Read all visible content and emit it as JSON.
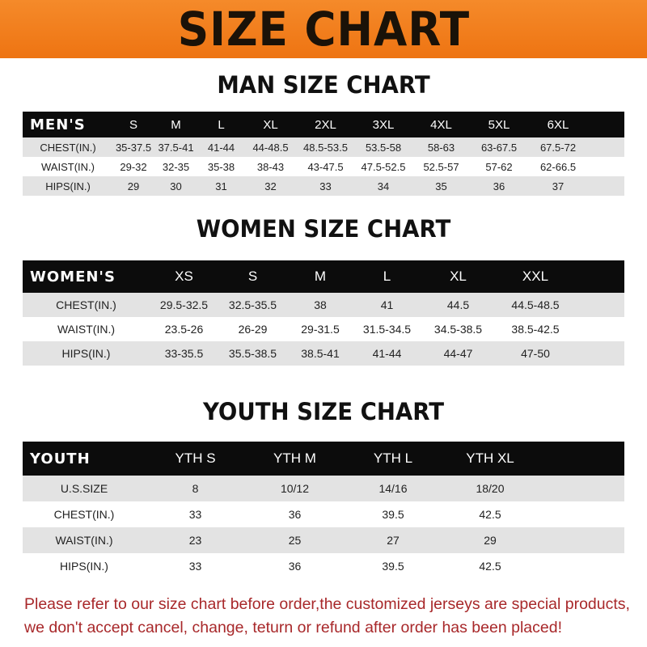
{
  "title": "SIZE CHART",
  "men": {
    "title": "MAN SIZE CHART",
    "header": [
      "MEN'S",
      "S",
      "M",
      "L",
      "XL",
      "2XL",
      "3XL",
      "4XL",
      "5XL",
      "6XL"
    ],
    "rows": [
      [
        "CHEST(IN.)",
        "35-37.5",
        "37.5-41",
        "41-44",
        "44-48.5",
        "48.5-53.5",
        "53.5-58",
        "58-63",
        "63-67.5",
        "67.5-72"
      ],
      [
        "WAIST(IN.)",
        "29-32",
        "32-35",
        "35-38",
        "38-43",
        "43-47.5",
        "47.5-52.5",
        "52.5-57",
        "57-62",
        "62-66.5"
      ],
      [
        "HIPS(IN.)",
        "29",
        "30",
        "31",
        "32",
        "33",
        "34",
        "35",
        "36",
        "37"
      ]
    ]
  },
  "women": {
    "title": "WOMEN SIZE CHART",
    "header": [
      "WOMEN'S",
      "XS",
      "S",
      "M",
      "L",
      "XL",
      "XXL"
    ],
    "rows": [
      [
        "CHEST(IN.)",
        "29.5-32.5",
        "32.5-35.5",
        "38",
        "41",
        "44.5",
        "44.5-48.5"
      ],
      [
        "WAIST(IN.)",
        "23.5-26",
        "26-29",
        "29-31.5",
        "31.5-34.5",
        "34.5-38.5",
        "38.5-42.5"
      ],
      [
        "HIPS(IN.)",
        "33-35.5",
        "35.5-38.5",
        "38.5-41",
        "41-44",
        "44-47",
        "47-50"
      ]
    ]
  },
  "youth": {
    "title": "YOUTH SIZE CHART",
    "header": [
      "YOUTH",
      "YTH S",
      "YTH M",
      "YTH L",
      "YTH XL"
    ],
    "rows": [
      [
        "U.S.SIZE",
        "8",
        "10/12",
        "14/16",
        "18/20"
      ],
      [
        "CHEST(IN.)",
        "33",
        "36",
        "39.5",
        "42.5"
      ],
      [
        "WAIST(IN.)",
        "23",
        "25",
        "27",
        "29"
      ],
      [
        "HIPS(IN.)",
        "33",
        "36",
        "39.5",
        "42.5"
      ]
    ]
  },
  "note": [
    "Please refer to our size chart before order,the customized jerseys are special products,",
    "we don't accept cancel, change, teturn or refund after order has been placed!"
  ],
  "colors": {
    "banner": "#ef7a18",
    "header": "#0c0c0c",
    "note": "#a8282a"
  }
}
